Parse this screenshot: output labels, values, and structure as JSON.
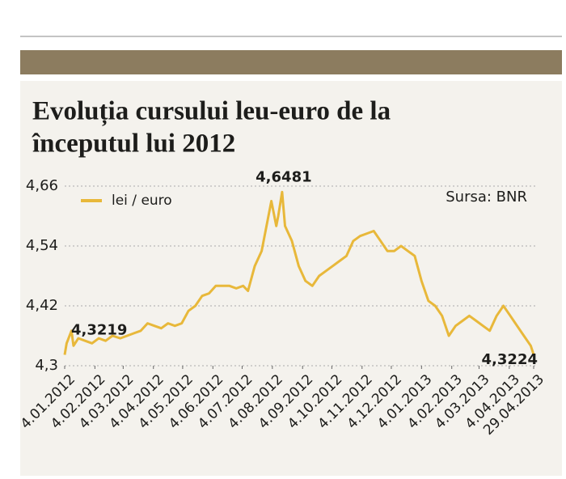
{
  "chart_data": {
    "type": "line",
    "title": [
      "Evoluția cursului leu-euro de la",
      "începutul lui 2012"
    ],
    "source": "Sursa: BNR",
    "legend": "top-left",
    "grid": true,
    "x": [
      "2012-01-04",
      "2012-01-06",
      "2012-01-11",
      "2012-01-13",
      "2012-01-18",
      "2012-01-25",
      "2012-02-01",
      "2012-02-08",
      "2012-02-15",
      "2012-02-22",
      "2012-03-01",
      "2012-03-08",
      "2012-03-15",
      "2012-03-22",
      "2012-03-29",
      "2012-04-05",
      "2012-04-12",
      "2012-04-19",
      "2012-04-26",
      "2012-05-03",
      "2012-05-10",
      "2012-05-17",
      "2012-05-24",
      "2012-05-31",
      "2012-06-07",
      "2012-06-14",
      "2012-06-21",
      "2012-06-28",
      "2012-07-05",
      "2012-07-10",
      "2012-07-17",
      "2012-07-24",
      "2012-07-31",
      "2012-08-03",
      "2012-08-08",
      "2012-08-10",
      "2012-08-14",
      "2012-08-17",
      "2012-08-24",
      "2012-08-31",
      "2012-09-07",
      "2012-09-14",
      "2012-09-21",
      "2012-09-28",
      "2012-10-05",
      "2012-10-12",
      "2012-10-19",
      "2012-10-26",
      "2012-11-02",
      "2012-11-09",
      "2012-11-16",
      "2012-11-23",
      "2012-11-30",
      "2012-12-07",
      "2012-12-14",
      "2012-12-21",
      "2012-12-28",
      "2013-01-04",
      "2013-01-11",
      "2013-01-18",
      "2013-01-25",
      "2013-02-01",
      "2013-02-08",
      "2013-02-15",
      "2013-02-22",
      "2013-03-01",
      "2013-03-08",
      "2013-03-15",
      "2013-03-22",
      "2013-03-29",
      "2013-04-05",
      "2013-04-12",
      "2013-04-19",
      "2013-04-26",
      "2013-04-29"
    ],
    "series": [
      {
        "name": "lei / euro",
        "color": "#e8b83a",
        "values": [
          4.3219,
          4.345,
          4.37,
          4.34,
          4.355,
          4.35,
          4.345,
          4.355,
          4.35,
          4.36,
          4.355,
          4.36,
          4.365,
          4.37,
          4.385,
          4.38,
          4.375,
          4.385,
          4.38,
          4.385,
          4.41,
          4.42,
          4.44,
          4.445,
          4.46,
          4.46,
          4.46,
          4.455,
          4.46,
          4.45,
          4.5,
          4.53,
          4.6,
          4.63,
          4.58,
          4.6,
          4.6481,
          4.58,
          4.55,
          4.5,
          4.47,
          4.46,
          4.48,
          4.49,
          4.5,
          4.51,
          4.52,
          4.55,
          4.56,
          4.565,
          4.57,
          4.55,
          4.53,
          4.53,
          4.54,
          4.53,
          4.52,
          4.47,
          4.43,
          4.42,
          4.4,
          4.36,
          4.38,
          4.39,
          4.4,
          4.39,
          4.38,
          4.37,
          4.4,
          4.42,
          4.4,
          4.38,
          4.36,
          4.34,
          4.3224
        ],
        "value_labels": [
          "4,3219",
          null,
          null,
          null,
          null,
          null,
          null,
          null,
          null,
          null,
          null,
          null,
          null,
          null,
          null,
          null,
          null,
          null,
          null,
          null,
          null,
          null,
          null,
          null,
          null,
          null,
          null,
          null,
          null,
          null,
          null,
          null,
          null,
          null,
          null,
          null,
          "4,6481",
          null,
          null,
          null,
          null,
          null,
          null,
          null,
          null,
          null,
          null,
          null,
          null,
          null,
          null,
          null,
          null,
          null,
          null,
          null,
          null,
          null,
          null,
          null,
          null,
          null,
          null,
          null,
          null,
          null,
          null,
          null,
          null,
          null,
          null,
          null,
          null,
          null,
          "4,3224"
        ]
      }
    ],
    "xlim": [
      "2012-01-04",
      "2013-04-29"
    ],
    "xticks": [
      {
        "value": "2012-01-04",
        "label": "4.01.2012"
      },
      {
        "value": "2012-02-04",
        "label": "4.02.2012"
      },
      {
        "value": "2012-03-04",
        "label": "4.03.2012"
      },
      {
        "value": "2012-04-04",
        "label": "4.04.2012"
      },
      {
        "value": "2012-05-04",
        "label": "4.05.2012"
      },
      {
        "value": "2012-06-04",
        "label": "4.06.2012"
      },
      {
        "value": "2012-07-04",
        "label": "4.07.2012"
      },
      {
        "value": "2012-08-04",
        "label": "4.08.2012"
      },
      {
        "value": "2012-09-04",
        "label": "4.09.2012"
      },
      {
        "value": "2012-10-04",
        "label": "4.10.2012"
      },
      {
        "value": "2012-11-04",
        "label": "4.11.2012"
      },
      {
        "value": "2012-12-04",
        "label": "4.12.2012"
      },
      {
        "value": "2013-01-04",
        "label": "4.01.2013"
      },
      {
        "value": "2013-02-04",
        "label": "4.02.2013"
      },
      {
        "value": "2013-03-04",
        "label": "4.03.2013"
      },
      {
        "value": "2013-04-04",
        "label": "4.04.2013"
      },
      {
        "value": "2013-04-29",
        "label": "29.04.2013"
      }
    ],
    "ylim": [
      4.3,
      4.66
    ],
    "yticks": [
      {
        "value": 4.3,
        "label": "4,3"
      },
      {
        "value": 4.42,
        "label": "4,42"
      },
      {
        "value": 4.54,
        "label": "4,54"
      },
      {
        "value": 4.66,
        "label": "4,66"
      }
    ]
  }
}
